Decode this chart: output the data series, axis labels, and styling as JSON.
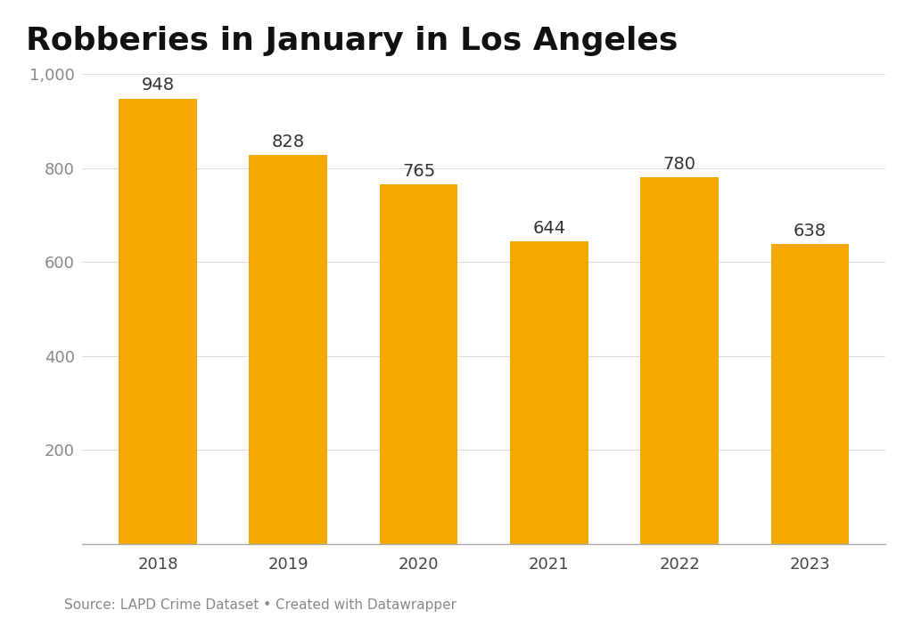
{
  "title": "Robberies in January in Los Angeles",
  "categories": [
    "2018",
    "2019",
    "2020",
    "2021",
    "2022",
    "2023"
  ],
  "values": [
    948,
    828,
    765,
    644,
    780,
    638
  ],
  "bar_color": "#F5A800",
  "background_color": "#ffffff",
  "ylim": [
    0,
    1000
  ],
  "yticks": [
    200,
    400,
    600,
    800,
    1000
  ],
  "title_fontsize": 26,
  "label_fontsize": 14,
  "tick_fontsize": 13,
  "source_text": "Source: LAPD Crime Dataset • Created with Datawrapper",
  "source_fontsize": 11
}
